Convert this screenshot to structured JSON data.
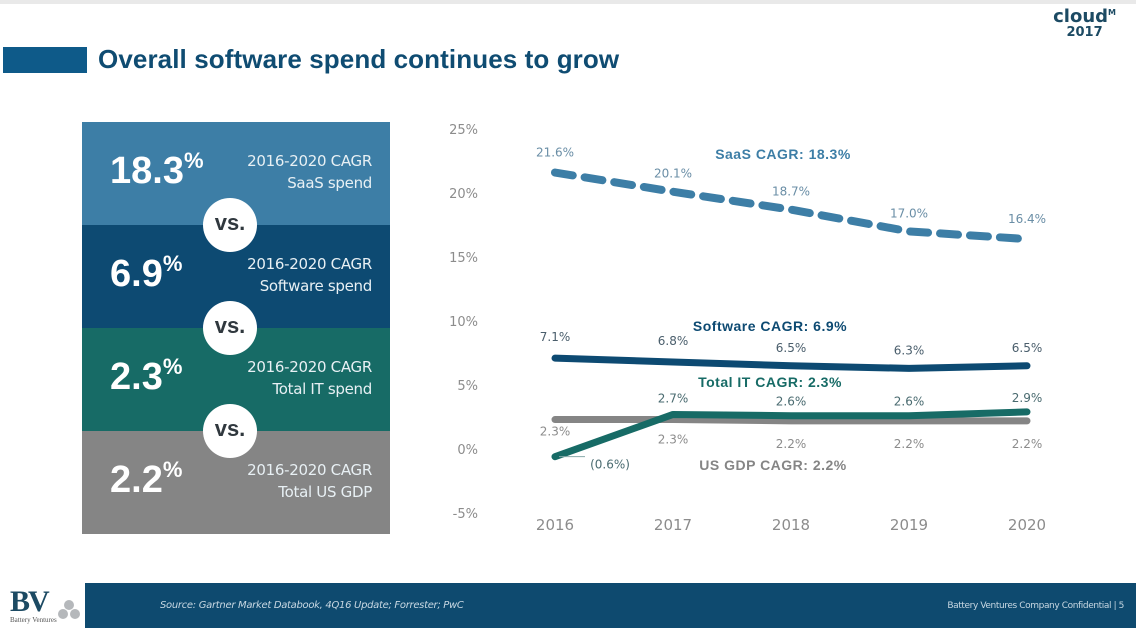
{
  "header": {
    "title": "Overall software spend continues to grow",
    "logo_brand": "cloud",
    "logo_tm": "M",
    "logo_year": "2017"
  },
  "colors": {
    "title_accent": "#0e5a89",
    "saas": "#3d7ea6",
    "software": "#0d4a72",
    "total_it": "#176b66",
    "us_gdp": "#858585",
    "footer": "#0e4a6f"
  },
  "summary": [
    {
      "value": "18.3",
      "unit": "%",
      "line1": "2016-2020 CAGR",
      "line2": "SaaS spend"
    },
    {
      "value": "6.9",
      "unit": "%",
      "line1": "2016-2020 CAGR",
      "line2": "Software spend"
    },
    {
      "value": "2.3",
      "unit": "%",
      "line1": "2016-2020 CAGR",
      "line2": "Total IT spend"
    },
    {
      "value": "2.2",
      "unit": "%",
      "line1": "2016-2020 CAGR",
      "line2": "Total US GDP"
    }
  ],
  "vs_label": "vs.",
  "chart_data": {
    "type": "line",
    "title": "",
    "xlabel": "",
    "ylabel": "",
    "x": [
      "2016",
      "2017",
      "2018",
      "2019",
      "2020"
    ],
    "ylim": [
      -5,
      25
    ],
    "yticks": [
      "25%",
      "20%",
      "15%",
      "10%",
      "5%",
      "0%",
      "-5%"
    ],
    "ytick_values": [
      25,
      20,
      15,
      10,
      5,
      0,
      -5
    ],
    "grid": false,
    "legend": "inline series labels",
    "series": [
      {
        "key": "saas",
        "name": "SaaS CAGR: 18.3%",
        "style": "dashed",
        "values": [
          21.6,
          20.1,
          18.7,
          17.0,
          16.4
        ],
        "labels": [
          "21.6%",
          "20.1%",
          "18.7%",
          "17.0%",
          "16.4%"
        ]
      },
      {
        "key": "software",
        "name": "Software CAGR: 6.9%",
        "style": "solid",
        "values": [
          7.1,
          6.8,
          6.5,
          6.3,
          6.5
        ],
        "labels": [
          "7.1%",
          "6.8%",
          "6.5%",
          "6.3%",
          "6.5%"
        ]
      },
      {
        "key": "total_it",
        "name": "Total IT CAGR: 2.3%",
        "style": "solid",
        "values": [
          -0.6,
          2.7,
          2.6,
          2.6,
          2.9
        ],
        "labels": [
          "(0.6%)",
          "2.7%",
          "2.6%",
          "2.6%",
          "2.9%"
        ]
      },
      {
        "key": "us_gdp",
        "name": "US GDP CAGR: 2.2%",
        "style": "solid",
        "values": [
          2.3,
          2.3,
          2.2,
          2.2,
          2.2
        ],
        "labels": [
          "2.3%",
          "2.3%",
          "2.2%",
          "2.2%",
          "2.2%"
        ]
      }
    ]
  },
  "footer": {
    "source": "Source: Gartner Market Databook, 4Q16 Update; Forrester; PwC",
    "confidential": "Battery Ventures Company Confidential  |  5",
    "logo_text": "BV",
    "logo_subtext": "Battery Ventures"
  }
}
